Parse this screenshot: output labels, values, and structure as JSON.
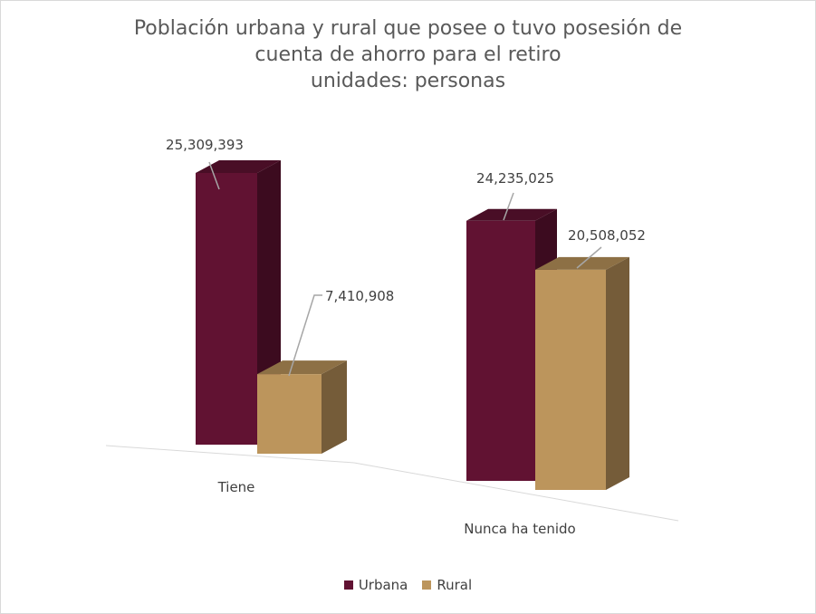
{
  "chart_data": {
    "type": "bar",
    "title_lines": [
      "Población urbana y rural que posee o tuvo posesión de",
      "cuenta de ahorro para el retiro",
      "unidades: personas"
    ],
    "categories": [
      "Tiene",
      "Nunca ha tenido"
    ],
    "series": [
      {
        "name": "Urbana",
        "color": "#611232",
        "values": [
          25309393,
          24235025
        ],
        "labels": [
          "25,309,393",
          "24,235,025"
        ]
      },
      {
        "name": "Rural",
        "color": "#bc955c",
        "values": [
          7410908,
          20508052
        ],
        "labels": [
          "7,410,908",
          "20,508,052"
        ]
      }
    ],
    "ylim": [
      0,
      27000000
    ],
    "grid": false,
    "legend_position": "bottom",
    "style": "3d-clustered-column"
  }
}
